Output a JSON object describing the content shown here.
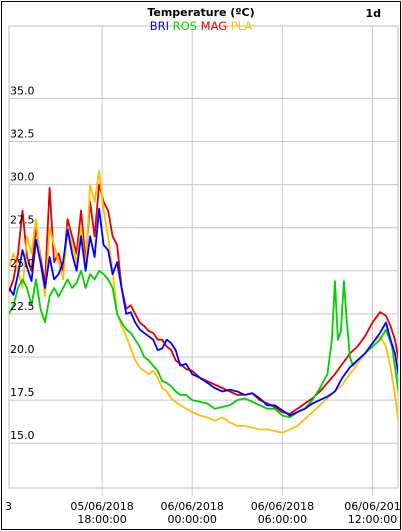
{
  "chart_data": {
    "type": "line",
    "title": "Temperature (ºC)",
    "corner_label": "1d",
    "ylim": [
      12.4,
      39.2
    ],
    "y_ticks": [
      "35.0",
      "32.5",
      "30.0",
      "27.5",
      "25.0",
      "22.5",
      "20.0",
      "17.5",
      "15.0"
    ],
    "y_tick_values": [
      35.0,
      32.5,
      30.0,
      27.5,
      25.0,
      22.5,
      20.0,
      17.5,
      15.0
    ],
    "x_range_hours": [
      -6.2,
      19.7
    ],
    "x_ticks": [
      {
        "date": "05/06/2018",
        "time": "18:00:00",
        "hour": 0
      },
      {
        "date": "06/06/2018",
        "time": "00:00:00",
        "hour": 6
      },
      {
        "date": "06/06/2018",
        "time": "06:00:00",
        "hour": 12
      },
      {
        "date": "06/06/201",
        "time": "12:00:00",
        "hour": 18
      }
    ],
    "x_left_partial_label": "3",
    "grid": true,
    "legend_position": "top-center",
    "series": [
      {
        "name": "BRI",
        "color": "#0000ff",
        "points": [
          [
            -6.2,
            24.0
          ],
          [
            -5.9,
            23.6
          ],
          [
            -5.6,
            24.8
          ],
          [
            -5.3,
            26.2
          ],
          [
            -5.0,
            25.2
          ],
          [
            -4.7,
            24.4
          ],
          [
            -4.4,
            26.8
          ],
          [
            -4.1,
            25.5
          ],
          [
            -3.8,
            24.0
          ],
          [
            -3.5,
            25.8
          ],
          [
            -3.2,
            24.5
          ],
          [
            -2.9,
            24.8
          ],
          [
            -2.6,
            25.5
          ],
          [
            -2.3,
            27.4
          ],
          [
            -2.0,
            26.0
          ],
          [
            -1.7,
            25.0
          ],
          [
            -1.4,
            27.0
          ],
          [
            -1.1,
            25.0
          ],
          [
            -0.8,
            27.0
          ],
          [
            -0.5,
            25.8
          ],
          [
            -0.2,
            28.6
          ],
          [
            0.1,
            26.5
          ],
          [
            0.4,
            26.2
          ],
          [
            0.7,
            24.8
          ],
          [
            1.0,
            25.5
          ],
          [
            1.3,
            24.0
          ],
          [
            1.6,
            22.5
          ],
          [
            1.9,
            22.6
          ],
          [
            2.2,
            22.0
          ],
          [
            2.5,
            21.6
          ],
          [
            2.8,
            21.4
          ],
          [
            3.1,
            21.2
          ],
          [
            3.4,
            21.0
          ],
          [
            3.7,
            20.4
          ],
          [
            4.0,
            20.5
          ],
          [
            4.3,
            21.0
          ],
          [
            4.6,
            20.8
          ],
          [
            4.9,
            20.4
          ],
          [
            5.2,
            19.5
          ],
          [
            5.6,
            19.6
          ],
          [
            6.0,
            19.0
          ],
          [
            6.5,
            18.8
          ],
          [
            7.0,
            18.5
          ],
          [
            7.5,
            18.2
          ],
          [
            8.0,
            18.0
          ],
          [
            8.5,
            18.1
          ],
          [
            9.0,
            18.0
          ],
          [
            9.5,
            17.8
          ],
          [
            10.0,
            17.9
          ],
          [
            10.5,
            17.6
          ],
          [
            11.0,
            17.2
          ],
          [
            11.5,
            17.2
          ],
          [
            12.0,
            16.9
          ],
          [
            12.5,
            16.6
          ],
          [
            13.0,
            16.8
          ],
          [
            13.5,
            17.0
          ],
          [
            14.0,
            17.3
          ],
          [
            14.5,
            17.5
          ],
          [
            15.0,
            17.7
          ],
          [
            15.5,
            18.0
          ],
          [
            16.0,
            18.8
          ],
          [
            16.5,
            19.4
          ],
          [
            17.0,
            19.8
          ],
          [
            17.5,
            20.2
          ],
          [
            18.0,
            20.8
          ],
          [
            18.5,
            21.4
          ],
          [
            18.9,
            22.0
          ],
          [
            19.2,
            21.0
          ],
          [
            19.5,
            20.2
          ],
          [
            19.8,
            18.6
          ],
          [
            20.0,
            16.8
          ],
          [
            20.3,
            15.8
          ],
          [
            20.6,
            15.2
          ],
          [
            21.0,
            15.6
          ],
          [
            21.4,
            15.8
          ]
        ]
      },
      {
        "name": "ROS",
        "color": "#00d000",
        "points": [
          [
            -6.2,
            22.5
          ],
          [
            -5.9,
            23.0
          ],
          [
            -5.6,
            24.0
          ],
          [
            -5.3,
            24.5
          ],
          [
            -5.0,
            24.0
          ],
          [
            -4.7,
            23.0
          ],
          [
            -4.4,
            24.5
          ],
          [
            -4.1,
            22.8
          ],
          [
            -3.8,
            22.0
          ],
          [
            -3.5,
            23.5
          ],
          [
            -3.2,
            24.0
          ],
          [
            -2.9,
            23.5
          ],
          [
            -2.6,
            24.0
          ],
          [
            -2.3,
            24.5
          ],
          [
            -2.0,
            24.0
          ],
          [
            -1.7,
            24.3
          ],
          [
            -1.4,
            25.0
          ],
          [
            -1.1,
            24.0
          ],
          [
            -0.8,
            24.8
          ],
          [
            -0.5,
            24.5
          ],
          [
            -0.2,
            25.0
          ],
          [
            0.1,
            24.8
          ],
          [
            0.4,
            24.5
          ],
          [
            0.7,
            24.0
          ],
          [
            1.0,
            22.5
          ],
          [
            1.3,
            22.0
          ],
          [
            1.6,
            21.6
          ],
          [
            1.9,
            21.4
          ],
          [
            2.2,
            21.0
          ],
          [
            2.5,
            20.6
          ],
          [
            2.8,
            20.0
          ],
          [
            3.1,
            19.8
          ],
          [
            3.4,
            19.5
          ],
          [
            3.7,
            19.2
          ],
          [
            4.0,
            18.6
          ],
          [
            4.3,
            18.5
          ],
          [
            4.6,
            18.3
          ],
          [
            4.9,
            18.0
          ],
          [
            5.2,
            17.8
          ],
          [
            5.6,
            17.8
          ],
          [
            6.0,
            17.5
          ],
          [
            6.5,
            17.4
          ],
          [
            7.0,
            17.3
          ],
          [
            7.5,
            17.0
          ],
          [
            8.0,
            17.1
          ],
          [
            8.5,
            17.2
          ],
          [
            9.0,
            17.5
          ],
          [
            9.5,
            17.6
          ],
          [
            10.0,
            17.4
          ],
          [
            10.5,
            17.2
          ],
          [
            11.0,
            17.0
          ],
          [
            11.5,
            17.0
          ],
          [
            12.0,
            16.6
          ],
          [
            12.5,
            16.5
          ],
          [
            13.0,
            16.8
          ],
          [
            13.5,
            17.0
          ],
          [
            14.0,
            17.5
          ],
          [
            14.5,
            18.2
          ],
          [
            15.0,
            19.0
          ],
          [
            15.3,
            21.0
          ],
          [
            15.5,
            24.4
          ],
          [
            15.7,
            21.0
          ],
          [
            15.9,
            21.5
          ],
          [
            16.1,
            24.4
          ],
          [
            16.3,
            22.0
          ],
          [
            16.5,
            20.0
          ],
          [
            16.7,
            19.5
          ],
          [
            17.0,
            19.8
          ],
          [
            17.5,
            20.2
          ],
          [
            18.0,
            20.6
          ],
          [
            18.5,
            21.0
          ],
          [
            18.9,
            21.6
          ],
          [
            19.3,
            20.6
          ],
          [
            19.6,
            18.8
          ],
          [
            19.9,
            17.0
          ],
          [
            20.2,
            16.0
          ],
          [
            20.5,
            15.2
          ],
          [
            21.0,
            15.4
          ],
          [
            21.4,
            15.7
          ]
        ]
      },
      {
        "name": "MAG",
        "color": "#e00000",
        "points": [
          [
            -6.2,
            23.8
          ],
          [
            -5.9,
            24.5
          ],
          [
            -5.6,
            26.0
          ],
          [
            -5.3,
            28.5
          ],
          [
            -5.0,
            25.8
          ],
          [
            -4.7,
            25.0
          ],
          [
            -4.4,
            27.5
          ],
          [
            -4.1,
            25.8
          ],
          [
            -3.8,
            24.2
          ],
          [
            -3.5,
            29.8
          ],
          [
            -3.2,
            25.5
          ],
          [
            -2.9,
            26.0
          ],
          [
            -2.6,
            25.0
          ],
          [
            -2.3,
            28.0
          ],
          [
            -2.0,
            27.0
          ],
          [
            -1.7,
            26.0
          ],
          [
            -1.4,
            28.5
          ],
          [
            -1.1,
            25.5
          ],
          [
            -0.8,
            29.0
          ],
          [
            -0.5,
            27.0
          ],
          [
            -0.2,
            30.0
          ],
          [
            0.1,
            29.0
          ],
          [
            0.4,
            28.5
          ],
          [
            0.7,
            27.0
          ],
          [
            1.0,
            26.5
          ],
          [
            1.3,
            24.0
          ],
          [
            1.6,
            22.8
          ],
          [
            1.9,
            23.0
          ],
          [
            2.2,
            22.5
          ],
          [
            2.5,
            22.0
          ],
          [
            2.8,
            21.8
          ],
          [
            3.1,
            21.5
          ],
          [
            3.4,
            21.4
          ],
          [
            3.7,
            21.0
          ],
          [
            4.0,
            21.0
          ],
          [
            4.3,
            20.6
          ],
          [
            4.6,
            20.4
          ],
          [
            4.9,
            19.8
          ],
          [
            5.2,
            19.6
          ],
          [
            5.6,
            19.3
          ],
          [
            6.0,
            19.2
          ],
          [
            6.5,
            18.8
          ],
          [
            7.0,
            18.6
          ],
          [
            7.5,
            18.4
          ],
          [
            8.0,
            18.2
          ],
          [
            8.5,
            18.0
          ],
          [
            9.0,
            17.8
          ],
          [
            9.5,
            17.8
          ],
          [
            10.0,
            17.9
          ],
          [
            10.5,
            17.5
          ],
          [
            11.0,
            17.3
          ],
          [
            11.5,
            17.1
          ],
          [
            12.0,
            16.8
          ],
          [
            12.5,
            16.7
          ],
          [
            13.0,
            17.0
          ],
          [
            13.5,
            17.3
          ],
          [
            14.0,
            17.6
          ],
          [
            14.5,
            18.0
          ],
          [
            15.0,
            18.5
          ],
          [
            15.5,
            19.0
          ],
          [
            16.0,
            19.6
          ],
          [
            16.5,
            20.2
          ],
          [
            17.0,
            20.6
          ],
          [
            17.5,
            21.2
          ],
          [
            18.0,
            22.0
          ],
          [
            18.5,
            22.6
          ],
          [
            18.9,
            22.4
          ],
          [
            19.2,
            21.8
          ],
          [
            19.5,
            21.0
          ],
          [
            19.8,
            19.5
          ],
          [
            20.0,
            17.0
          ],
          [
            20.3,
            16.2
          ],
          [
            20.6,
            15.8
          ],
          [
            21.0,
            16.2
          ],
          [
            21.4,
            16.0
          ]
        ]
      },
      {
        "name": "PLA",
        "color": "#ffc000",
        "points": [
          [
            -6.2,
            25.2
          ],
          [
            -5.9,
            26.0
          ],
          [
            -5.6,
            25.0
          ],
          [
            -5.3,
            24.0
          ],
          [
            -5.0,
            27.0
          ],
          [
            -4.7,
            26.0
          ],
          [
            -4.4,
            28.0
          ],
          [
            -4.1,
            25.5
          ],
          [
            -3.8,
            23.5
          ],
          [
            -3.5,
            27.5
          ],
          [
            -3.2,
            26.5
          ],
          [
            -2.9,
            25.5
          ],
          [
            -2.6,
            24.5
          ],
          [
            -2.3,
            27.5
          ],
          [
            -2.0,
            26.5
          ],
          [
            -1.7,
            25.5
          ],
          [
            -1.4,
            27.5
          ],
          [
            -1.1,
            25.0
          ],
          [
            -0.8,
            30.0
          ],
          [
            -0.5,
            29.0
          ],
          [
            -0.2,
            30.8
          ],
          [
            0.1,
            28.5
          ],
          [
            0.4,
            27.0
          ],
          [
            0.7,
            25.0
          ],
          [
            1.0,
            22.5
          ],
          [
            1.3,
            21.8
          ],
          [
            1.6,
            21.2
          ],
          [
            1.9,
            20.5
          ],
          [
            2.2,
            19.8
          ],
          [
            2.5,
            19.4
          ],
          [
            2.8,
            19.2
          ],
          [
            3.1,
            19.0
          ],
          [
            3.4,
            19.2
          ],
          [
            3.7,
            18.8
          ],
          [
            4.0,
            18.2
          ],
          [
            4.3,
            18.0
          ],
          [
            4.6,
            17.6
          ],
          [
            4.9,
            17.4
          ],
          [
            5.2,
            17.2
          ],
          [
            5.6,
            17.0
          ],
          [
            6.0,
            16.8
          ],
          [
            6.5,
            16.6
          ],
          [
            7.0,
            16.5
          ],
          [
            7.5,
            16.3
          ],
          [
            8.0,
            16.5
          ],
          [
            8.5,
            16.2
          ],
          [
            9.0,
            16.0
          ],
          [
            9.5,
            16.0
          ],
          [
            10.0,
            15.9
          ],
          [
            10.5,
            15.8
          ],
          [
            11.0,
            15.8
          ],
          [
            11.5,
            15.7
          ],
          [
            12.0,
            15.6
          ],
          [
            12.5,
            15.8
          ],
          [
            13.0,
            16.0
          ],
          [
            13.5,
            16.4
          ],
          [
            14.0,
            16.8
          ],
          [
            14.5,
            17.2
          ],
          [
            15.0,
            17.6
          ],
          [
            15.5,
            18.0
          ],
          [
            16.0,
            18.4
          ],
          [
            16.5,
            19.0
          ],
          [
            17.0,
            19.6
          ],
          [
            17.5,
            20.2
          ],
          [
            18.0,
            20.8
          ],
          [
            18.5,
            21.2
          ],
          [
            18.9,
            20.6
          ],
          [
            19.2,
            19.4
          ],
          [
            19.5,
            17.8
          ],
          [
            19.8,
            15.8
          ],
          [
            20.0,
            14.6
          ],
          [
            20.3,
            14.2
          ],
          [
            20.6,
            14.4
          ],
          [
            21.0,
            14.6
          ],
          [
            21.4,
            14.8
          ]
        ]
      }
    ]
  }
}
